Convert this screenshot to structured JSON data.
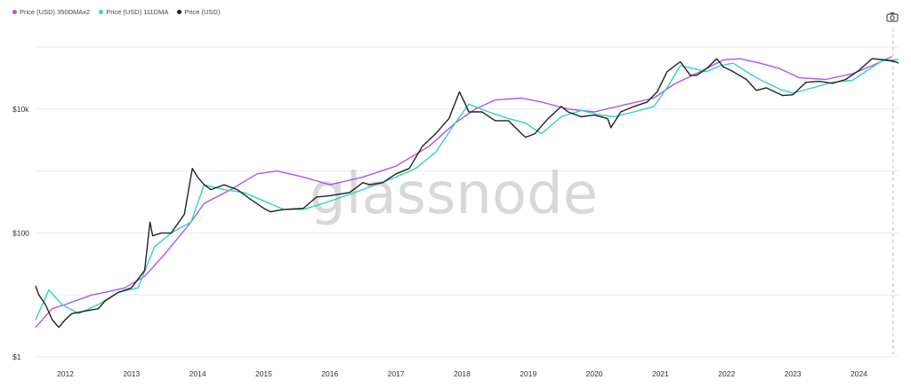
{
  "legend": [
    {
      "label": "Price (USD) 350DMAx2",
      "color": "#a855f7"
    },
    {
      "label": "Price (USD) 111DMA",
      "color": "#2dd4bf"
    },
    {
      "label": "Price (USD)",
      "color": "#222222"
    }
  ],
  "toolbar": {
    "camera_icon": "camera-icon"
  },
  "watermark": "glassnode",
  "chart_data": {
    "type": "line",
    "yscale": "log",
    "ylim": [
      1,
      200000
    ],
    "xlim": [
      2011.55,
      2024.6
    ],
    "y_ticks": [
      {
        "v": 1,
        "label": "$1"
      },
      {
        "v": 100,
        "label": "$100"
      },
      {
        "v": 10000,
        "label": "$10k"
      }
    ],
    "x_ticks": [
      "2012",
      "2013",
      "2014",
      "2015",
      "2016",
      "2017",
      "2018",
      "2019",
      "2020",
      "2021",
      "2022",
      "2023",
      "2024"
    ],
    "grid": "horizontal",
    "legend_position": "top-left",
    "series": [
      {
        "name": "Price (USD) 350DMAx2",
        "color": "#a855f7",
        "x": [
          2011.55,
          2011.8,
          2012.0,
          2012.4,
          2012.6,
          2012.9,
          2013.2,
          2013.5,
          2013.9,
          2014.1,
          2014.5,
          2014.9,
          2015.2,
          2015.6,
          2016.0,
          2016.5,
          2017.0,
          2017.5,
          2017.9,
          2018.2,
          2018.5,
          2018.9,
          2019.2,
          2019.6,
          2020.0,
          2020.5,
          2020.9,
          2021.2,
          2021.6,
          2021.95,
          2022.2,
          2022.5,
          2022.8,
          2023.1,
          2023.5,
          2023.9,
          2024.2,
          2024.5
        ],
        "y": [
          3,
          6,
          7,
          10,
          11,
          13,
          20,
          45,
          150,
          300,
          500,
          900,
          1000,
          800,
          600,
          800,
          1200,
          2500,
          6000,
          10000,
          14000,
          15000,
          13000,
          10000,
          9000,
          12000,
          15000,
          25000,
          40000,
          62000,
          65000,
          55000,
          45000,
          32000,
          30000,
          37000,
          50000,
          70000
        ]
      },
      {
        "name": "Price (USD) 111DMA",
        "color": "#2dd4bf",
        "x": [
          2011.55,
          2011.75,
          2011.95,
          2012.2,
          2012.5,
          2012.8,
          2013.1,
          2013.35,
          2013.6,
          2013.9,
          2014.1,
          2014.4,
          2014.7,
          2015.0,
          2015.3,
          2015.6,
          2015.9,
          2016.3,
          2016.7,
          2017.0,
          2017.3,
          2017.6,
          2017.9,
          2018.1,
          2018.4,
          2018.7,
          2018.95,
          2019.2,
          2019.5,
          2019.8,
          2020.1,
          2020.3,
          2020.6,
          2020.9,
          2021.1,
          2021.3,
          2021.5,
          2021.7,
          2021.9,
          2022.1,
          2022.3,
          2022.5,
          2022.8,
          2023.0,
          2023.3,
          2023.6,
          2023.9,
          2024.1,
          2024.35,
          2024.6
        ],
        "y": [
          4,
          12,
          7,
          5,
          7,
          11,
          13,
          60,
          100,
          150,
          600,
          500,
          450,
          330,
          240,
          240,
          300,
          420,
          600,
          800,
          1100,
          2000,
          6000,
          12000,
          9000,
          7000,
          6000,
          4000,
          7500,
          9500,
          8000,
          7500,
          9000,
          11000,
          22000,
          50000,
          45000,
          40000,
          50000,
          55000,
          40000,
          30000,
          21000,
          18000,
          22000,
          27000,
          29000,
          40000,
          60000,
          63000
        ]
      },
      {
        "name": "Price (USD)",
        "color": "#222222",
        "x": [
          2011.55,
          2011.6,
          2011.7,
          2011.8,
          2011.9,
          2012.0,
          2012.1,
          2012.3,
          2012.5,
          2012.6,
          2012.8,
          2013.0,
          2013.2,
          2013.28,
          2013.32,
          2013.45,
          2013.6,
          2013.8,
          2013.92,
          2014.0,
          2014.1,
          2014.2,
          2014.4,
          2014.6,
          2014.8,
          2015.0,
          2015.1,
          2015.3,
          2015.6,
          2015.8,
          2016.0,
          2016.3,
          2016.5,
          2016.6,
          2016.8,
          2017.0,
          2017.2,
          2017.4,
          2017.6,
          2017.8,
          2017.96,
          2018.05,
          2018.1,
          2018.3,
          2018.5,
          2018.7,
          2018.9,
          2018.96,
          2019.1,
          2019.3,
          2019.5,
          2019.6,
          2019.8,
          2020.0,
          2020.2,
          2020.25,
          2020.4,
          2020.6,
          2020.8,
          2020.95,
          2021.1,
          2021.3,
          2021.45,
          2021.55,
          2021.7,
          2021.85,
          2021.95,
          2022.1,
          2022.3,
          2022.45,
          2022.6,
          2022.85,
          2023.0,
          2023.2,
          2023.4,
          2023.6,
          2023.8,
          2024.0,
          2024.2,
          2024.4,
          2024.55,
          2024.6
        ],
        "y": [
          14,
          10,
          7,
          4,
          3,
          4,
          5,
          5.5,
          6,
          8,
          11,
          13,
          25,
          150,
          90,
          100,
          100,
          200,
          1100,
          800,
          600,
          500,
          600,
          500,
          350,
          250,
          220,
          240,
          250,
          380,
          400,
          450,
          650,
          600,
          650,
          900,
          1100,
          2500,
          4000,
          7000,
          19000,
          12000,
          9000,
          9000,
          6500,
          6500,
          4000,
          3500,
          4000,
          7000,
          11000,
          9000,
          7500,
          8000,
          7000,
          5000,
          9000,
          11000,
          13000,
          19000,
          40000,
          58000,
          35000,
          35000,
          45000,
          65000,
          48000,
          40000,
          30000,
          20000,
          22000,
          16500,
          17000,
          27000,
          28000,
          26000,
          30000,
          42000,
          65000,
          62000,
          58000,
          55000
        ]
      }
    ]
  }
}
